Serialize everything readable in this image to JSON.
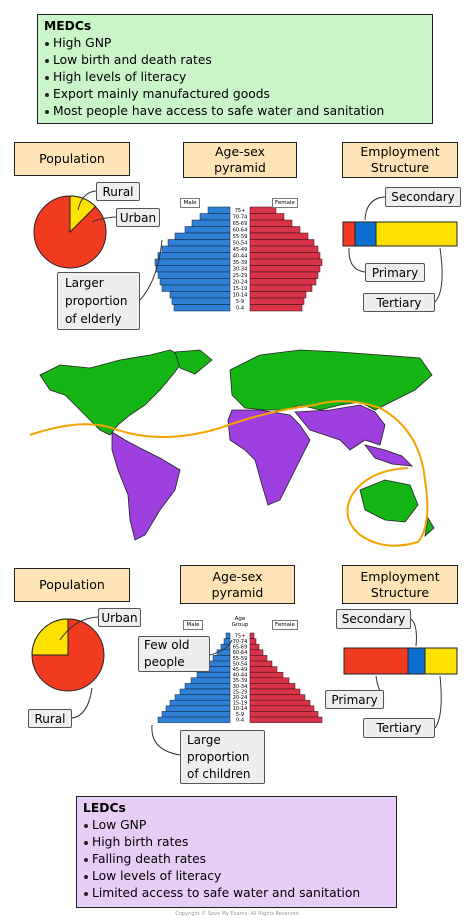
{
  "medc": {
    "title": "MEDCs",
    "points": [
      "High GNP",
      "Low birth and death rates",
      "High levels of literacy",
      "Export mainly manufactured goods",
      "Most people have access to safe water and sanitation"
    ],
    "population": {
      "title": "Population",
      "rural": "Rural",
      "urban": "Urban"
    },
    "pyramid": {
      "title": "Age-sex pyramid",
      "male": "Male",
      "female": "Female",
      "annotation": "Larger proportion of elderly"
    },
    "employment": {
      "title": "Employment Structure",
      "secondary": "Secondary",
      "primary": "Primary",
      "tertiary": "Tertiary"
    }
  },
  "age_groups": [
    "75+",
    "70-74",
    "65-69",
    "60-64",
    "55-59",
    "50-54",
    "45-49",
    "40-44",
    "35-39",
    "30-34",
    "25-29",
    "20-24",
    "15-19",
    "10-14",
    "5-9",
    "0-4"
  ],
  "ledc": {
    "title": "LEDCs",
    "points": [
      "Low GNP",
      "High birth rates",
      "Falling death rates",
      "Low levels of literacy",
      "Limited access to safe water and sanitation"
    ],
    "population": {
      "title": "Population",
      "urban": "Urban",
      "rural": "Rural"
    },
    "pyramid": {
      "title": "Age-sex pyramid",
      "header": "Age Group",
      "male": "Male",
      "female": "Female",
      "annotations": [
        "Few old people",
        "Large proportion of children"
      ]
    },
    "employment": {
      "title": "Employment Structure",
      "secondary": "Secondary",
      "primary": "Primary",
      "tertiary": "Tertiary"
    }
  },
  "copyright": "Copyright © Save My Exams. All Rights Reserved"
}
